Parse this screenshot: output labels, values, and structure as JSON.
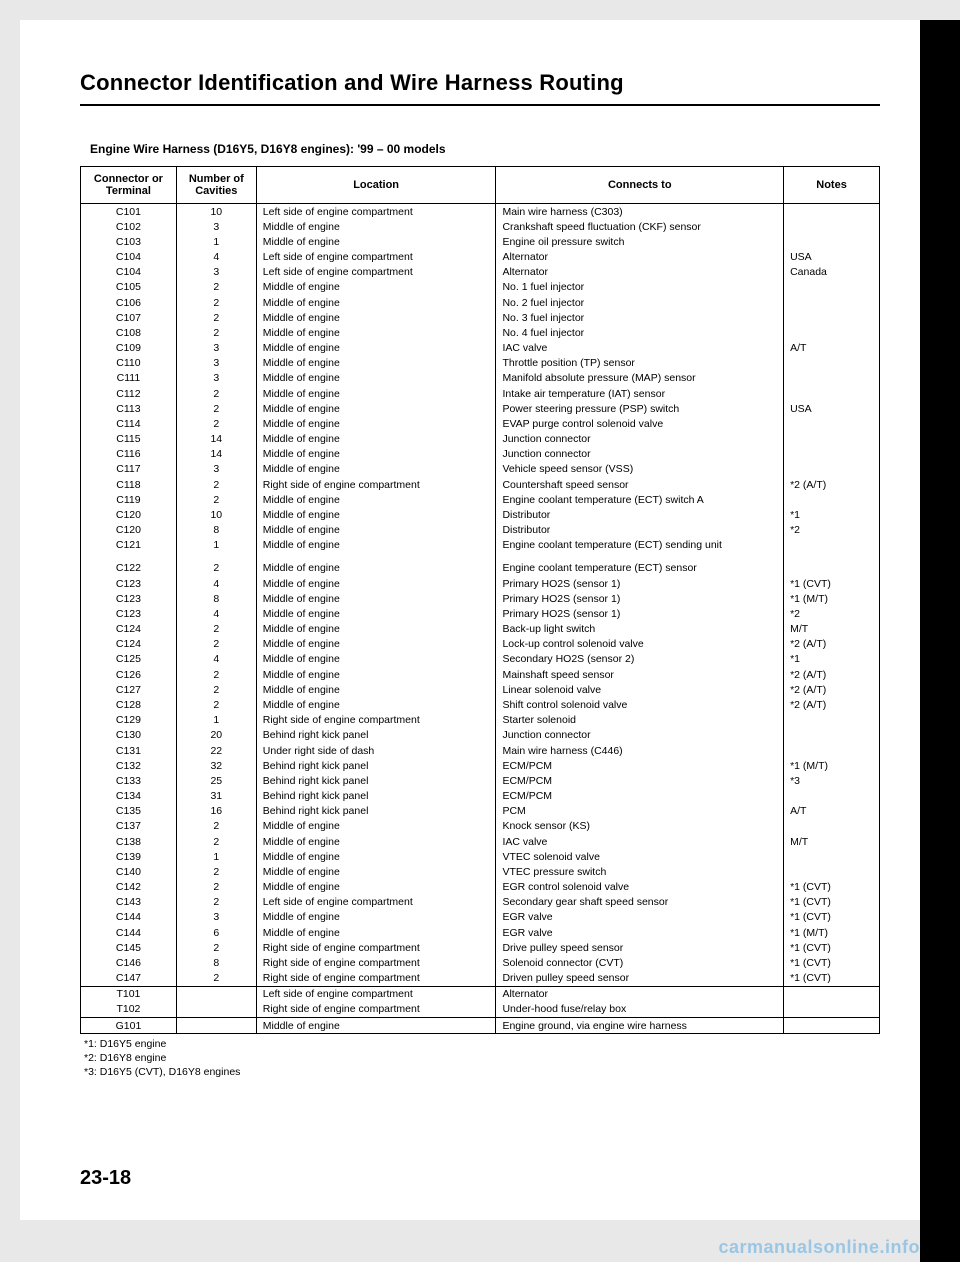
{
  "title": "Connector Identification and Wire Harness Routing",
  "subtitle": "Engine Wire Harness (D16Y5, D16Y8 engines): '99 – 00 models",
  "headers": {
    "conn": "Connector or Terminal",
    "cav": "Number of Cavities",
    "loc": "Location",
    "to": "Connects to",
    "notes": "Notes"
  },
  "rows": [
    {
      "c": "C101",
      "n": "10",
      "l": "Left side of engine compartment",
      "t": "Main wire harness (C303)",
      "x": ""
    },
    {
      "c": "C102",
      "n": "3",
      "l": "Middle of engine",
      "t": "Crankshaft speed fluctuation (CKF) sensor",
      "x": ""
    },
    {
      "c": "C103",
      "n": "1",
      "l": "Middle of engine",
      "t": "Engine oil pressure switch",
      "x": ""
    },
    {
      "c": "C104",
      "n": "4",
      "l": "Left side of engine compartment",
      "t": "Alternator",
      "x": "USA"
    },
    {
      "c": "C104",
      "n": "3",
      "l": "Left side of engine compartment",
      "t": "Alternator",
      "x": "Canada"
    },
    {
      "c": "C105",
      "n": "2",
      "l": "Middle of engine",
      "t": "No. 1 fuel injector",
      "x": ""
    },
    {
      "c": "C106",
      "n": "2",
      "l": "Middle of engine",
      "t": "No. 2 fuel injector",
      "x": ""
    },
    {
      "c": "C107",
      "n": "2",
      "l": "Middle of engine",
      "t": "No. 3 fuel injector",
      "x": ""
    },
    {
      "c": "C108",
      "n": "2",
      "l": "Middle of engine",
      "t": "No. 4 fuel injector",
      "x": ""
    },
    {
      "c": "C109",
      "n": "3",
      "l": "Middle of engine",
      "t": "IAC valve",
      "x": "A/T"
    },
    {
      "c": "C110",
      "n": "3",
      "l": "Middle of engine",
      "t": "Throttle position (TP) sensor",
      "x": ""
    },
    {
      "c": "C111",
      "n": "3",
      "l": "Middle of engine",
      "t": "Manifold absolute pressure (MAP) sensor",
      "x": ""
    },
    {
      "c": "C112",
      "n": "2",
      "l": "Middle of engine",
      "t": "Intake air temperature (IAT) sensor",
      "x": ""
    },
    {
      "c": "C113",
      "n": "2",
      "l": "Middle of engine",
      "t": "Power steering pressure (PSP) switch",
      "x": "USA"
    },
    {
      "c": "C114",
      "n": "2",
      "l": "Middle of engine",
      "t": "EVAP purge control solenoid valve",
      "x": ""
    },
    {
      "c": "C115",
      "n": "14",
      "l": "Middle of engine",
      "t": "Junction connector",
      "x": ""
    },
    {
      "c": "C116",
      "n": "14",
      "l": "Middle of engine",
      "t": "Junction connector",
      "x": ""
    },
    {
      "c": "C117",
      "n": "3",
      "l": "Middle of engine",
      "t": "Vehicle speed sensor (VSS)",
      "x": ""
    },
    {
      "c": "C118",
      "n": "2",
      "l": "Right side of engine compartment",
      "t": "Countershaft speed sensor",
      "x": "*2 (A/T)"
    },
    {
      "c": "C119",
      "n": "2",
      "l": "Middle of engine",
      "t": "Engine coolant temperature (ECT) switch A",
      "x": ""
    },
    {
      "c": "C120",
      "n": "10",
      "l": "Middle of engine",
      "t": "Distributor",
      "x": "*1"
    },
    {
      "c": "C120",
      "n": "8",
      "l": "Middle of engine",
      "t": "Distributor",
      "x": "*2"
    },
    {
      "c": "C121",
      "n": "1",
      "l": "Middle of engine",
      "t": "Engine coolant temperature (ECT) sending unit",
      "x": ""
    },
    {
      "c": "C122",
      "n": "2",
      "l": "Middle of engine",
      "t": "Engine coolant temperature (ECT) sensor",
      "x": ""
    },
    {
      "c": "C123",
      "n": "4",
      "l": "Middle of engine",
      "t": "Primary HO2S (sensor 1)",
      "x": "*1 (CVT)"
    },
    {
      "c": "C123",
      "n": "8",
      "l": "Middle of engine",
      "t": "Primary HO2S (sensor 1)",
      "x": "*1 (M/T)"
    },
    {
      "c": "C123",
      "n": "4",
      "l": "Middle of engine",
      "t": "Primary HO2S (sensor 1)",
      "x": "*2"
    },
    {
      "c": "C124",
      "n": "2",
      "l": "Middle of engine",
      "t": "Back-up light switch",
      "x": "M/T"
    },
    {
      "c": "C124",
      "n": "2",
      "l": "Middle of engine",
      "t": "Lock-up control solenoid valve",
      "x": "*2 (A/T)"
    },
    {
      "c": "C125",
      "n": "4",
      "l": "Middle of engine",
      "t": "Secondary HO2S (sensor 2)",
      "x": "*1"
    },
    {
      "c": "C126",
      "n": "2",
      "l": "Middle of engine",
      "t": "Mainshaft speed sensor",
      "x": "*2 (A/T)"
    },
    {
      "c": "C127",
      "n": "2",
      "l": "Middle of engine",
      "t": "Linear solenoid valve",
      "x": "*2 (A/T)"
    },
    {
      "c": "C128",
      "n": "2",
      "l": "Middle of engine",
      "t": "Shift control solenoid valve",
      "x": "*2 (A/T)"
    },
    {
      "c": "C129",
      "n": "1",
      "l": "Right side of engine compartment",
      "t": "Starter solenoid",
      "x": ""
    },
    {
      "c": "C130",
      "n": "20",
      "l": "Behind right kick panel",
      "t": "Junction connector",
      "x": ""
    },
    {
      "c": "C131",
      "n": "22",
      "l": "Under right side of dash",
      "t": "Main wire harness (C446)",
      "x": ""
    },
    {
      "c": "C132",
      "n": "32",
      "l": "Behind right kick panel",
      "t": "ECM/PCM",
      "x": "*1 (M/T)"
    },
    {
      "c": "C133",
      "n": "25",
      "l": "Behind right kick panel",
      "t": "ECM/PCM",
      "x": "*3"
    },
    {
      "c": "C134",
      "n": "31",
      "l": "Behind right kick panel",
      "t": "ECM/PCM",
      "x": ""
    },
    {
      "c": "C135",
      "n": "16",
      "l": "Behind right kick panel",
      "t": "PCM",
      "x": "A/T"
    },
    {
      "c": "C137",
      "n": "2",
      "l": "Middle of engine",
      "t": "Knock sensor (KS)",
      "x": ""
    },
    {
      "c": "C138",
      "n": "2",
      "l": "Middle of engine",
      "t": "IAC valve",
      "x": "M/T"
    },
    {
      "c": "C139",
      "n": "1",
      "l": "Middle of engine",
      "t": "VTEC solenoid valve",
      "x": ""
    },
    {
      "c": "C140",
      "n": "2",
      "l": "Middle of engine",
      "t": "VTEC pressure switch",
      "x": ""
    },
    {
      "c": "C142",
      "n": "2",
      "l": "Middle of engine",
      "t": "EGR control solenoid valve",
      "x": "*1 (CVT)"
    },
    {
      "c": "C143",
      "n": "2",
      "l": "Left side of engine compartment",
      "t": "Secondary gear shaft speed sensor",
      "x": "*1 (CVT)"
    },
    {
      "c": "C144",
      "n": "3",
      "l": "Middle of engine",
      "t": "EGR valve",
      "x": "*1 (CVT)"
    },
    {
      "c": "C144",
      "n": "6",
      "l": "Middle of engine",
      "t": "EGR valve",
      "x": "*1 (M/T)"
    },
    {
      "c": "C145",
      "n": "2",
      "l": "Right side of engine compartment",
      "t": "Drive pulley speed sensor",
      "x": "*1 (CVT)"
    },
    {
      "c": "C146",
      "n": "8",
      "l": "Right side of engine compartment",
      "t": "Solenoid connector (CVT)",
      "x": "*1 (CVT)"
    },
    {
      "c": "C147",
      "n": "2",
      "l": "Right side of engine compartment",
      "t": "Driven pulley speed sensor",
      "x": "*1 (CVT)"
    }
  ],
  "rowsT": [
    {
      "c": "T101",
      "n": "",
      "l": "Left side of engine compartment",
      "t": "Alternator",
      "x": ""
    },
    {
      "c": "T102",
      "n": "",
      "l": "Right side of engine compartment",
      "t": "Under-hood fuse/relay box",
      "x": ""
    }
  ],
  "rowsG": [
    {
      "c": "G101",
      "n": "",
      "l": "Middle of engine",
      "t": "Engine ground, via engine wire harness",
      "x": ""
    }
  ],
  "footnotes": [
    "*1: D16Y5 engine",
    "*2: D16Y8 engine",
    "*3: D16Y5 (CVT), D16Y8 engines"
  ],
  "pagenum": "23-18",
  "watermark": "carmanualsonline.info"
}
